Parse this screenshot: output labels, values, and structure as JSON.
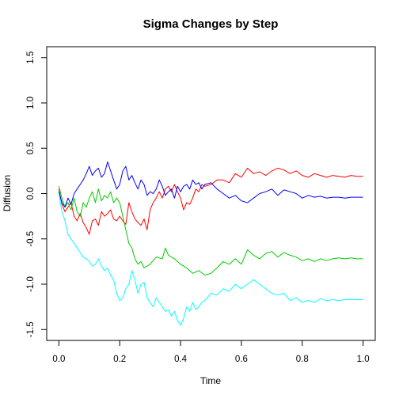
{
  "chart_data": {
    "type": "line",
    "title": "Sigma Changes by Step",
    "xlabel": "Time",
    "ylabel": "Diffusion",
    "xlim": [
      -0.04,
      1.04
    ],
    "ylim": [
      -1.62,
      1.62
    ],
    "x_ticks": [
      0.0,
      0.2,
      0.4,
      0.6,
      0.8,
      1.0
    ],
    "x_tick_labels": [
      "0.0",
      "0.2",
      "0.4",
      "0.6",
      "0.8",
      "1.0"
    ],
    "y_ticks": [
      -1.5,
      -1.0,
      -0.5,
      0.0,
      0.5,
      1.0,
      1.5
    ],
    "y_tick_labels": [
      "-1.5",
      "-1.0",
      "-0.5",
      "0.0",
      "0.5",
      "1.0",
      "1.5"
    ],
    "grid": false,
    "legend": "none",
    "series": [
      {
        "color": "#ff0000",
        "x": [
          0.0,
          0.01,
          0.02,
          0.03,
          0.04,
          0.05,
          0.06,
          0.07,
          0.08,
          0.09,
          0.1,
          0.11,
          0.12,
          0.13,
          0.14,
          0.15,
          0.16,
          0.17,
          0.18,
          0.19,
          0.2,
          0.21,
          0.22,
          0.23,
          0.24,
          0.25,
          0.26,
          0.27,
          0.28,
          0.29,
          0.3,
          0.31,
          0.32,
          0.33,
          0.34,
          0.35,
          0.36,
          0.37,
          0.38,
          0.39,
          0.4,
          0.41,
          0.42,
          0.43,
          0.44,
          0.45,
          0.46,
          0.47,
          0.48,
          0.5,
          0.52,
          0.54,
          0.56,
          0.58,
          0.6,
          0.62,
          0.64,
          0.66,
          0.68,
          0.7,
          0.72,
          0.74,
          0.76,
          0.78,
          0.8,
          0.82,
          0.84,
          0.86,
          0.88,
          0.9,
          0.92,
          0.94,
          0.96,
          0.98,
          1.0
        ],
        "y": [
          0.05,
          -0.12,
          -0.2,
          -0.15,
          -0.1,
          -0.25,
          -0.3,
          -0.22,
          -0.32,
          -0.38,
          -0.45,
          -0.3,
          -0.28,
          -0.35,
          -0.2,
          -0.25,
          -0.22,
          -0.18,
          -0.28,
          -0.3,
          -0.25,
          -0.3,
          -0.34,
          -0.1,
          -0.2,
          -0.28,
          -0.32,
          -0.35,
          -0.28,
          -0.4,
          -0.18,
          -0.1,
          -0.05,
          0.02,
          -0.05,
          0.05,
          0.08,
          0.02,
          0.1,
          0.02,
          -0.05,
          -0.18,
          -0.1,
          -0.12,
          -0.05,
          0.05,
          0.02,
          0.1,
          0.08,
          0.1,
          0.15,
          0.15,
          0.12,
          0.22,
          0.18,
          0.28,
          0.22,
          0.24,
          0.2,
          0.25,
          0.28,
          0.26,
          0.22,
          0.25,
          0.2,
          0.18,
          0.22,
          0.2,
          0.18,
          0.2,
          0.19,
          0.18,
          0.2,
          0.19,
          0.19
        ]
      },
      {
        "color": "#00cd00",
        "x": [
          0.0,
          0.01,
          0.02,
          0.03,
          0.04,
          0.05,
          0.06,
          0.07,
          0.08,
          0.09,
          0.1,
          0.11,
          0.12,
          0.13,
          0.14,
          0.15,
          0.16,
          0.17,
          0.18,
          0.19,
          0.2,
          0.21,
          0.22,
          0.23,
          0.24,
          0.25,
          0.26,
          0.27,
          0.28,
          0.29,
          0.3,
          0.32,
          0.34,
          0.35,
          0.36,
          0.38,
          0.4,
          0.42,
          0.44,
          0.46,
          0.48,
          0.5,
          0.52,
          0.54,
          0.56,
          0.58,
          0.6,
          0.62,
          0.64,
          0.66,
          0.68,
          0.7,
          0.72,
          0.74,
          0.76,
          0.78,
          0.8,
          0.82,
          0.84,
          0.86,
          0.88,
          0.9,
          0.92,
          0.94,
          0.96,
          0.98,
          1.0
        ],
        "y": [
          0.08,
          -0.05,
          -0.15,
          -0.1,
          -0.18,
          -0.05,
          -0.2,
          -0.25,
          -0.1,
          -0.15,
          -0.05,
          0.02,
          -0.1,
          0.05,
          -0.08,
          -0.02,
          -0.05,
          0.02,
          -0.1,
          -0.05,
          -0.1,
          -0.25,
          -0.4,
          -0.55,
          -0.6,
          -0.72,
          -0.78,
          -0.75,
          -0.82,
          -0.8,
          -0.78,
          -0.7,
          -0.72,
          -0.6,
          -0.68,
          -0.72,
          -0.78,
          -0.82,
          -0.88,
          -0.85,
          -0.9,
          -0.88,
          -0.82,
          -0.75,
          -0.78,
          -0.72,
          -0.78,
          -0.62,
          -0.68,
          -0.72,
          -0.66,
          -0.64,
          -0.7,
          -0.65,
          -0.68,
          -0.7,
          -0.74,
          -0.72,
          -0.75,
          -0.72,
          -0.74,
          -0.72,
          -0.71,
          -0.72,
          -0.71,
          -0.72,
          -0.72
        ]
      },
      {
        "color": "#0000ff",
        "x": [
          0.0,
          0.01,
          0.02,
          0.03,
          0.04,
          0.05,
          0.06,
          0.07,
          0.08,
          0.09,
          0.1,
          0.11,
          0.12,
          0.13,
          0.14,
          0.15,
          0.16,
          0.17,
          0.18,
          0.19,
          0.2,
          0.21,
          0.22,
          0.23,
          0.24,
          0.25,
          0.26,
          0.27,
          0.28,
          0.29,
          0.3,
          0.31,
          0.32,
          0.33,
          0.34,
          0.35,
          0.36,
          0.37,
          0.38,
          0.39,
          0.4,
          0.41,
          0.42,
          0.43,
          0.44,
          0.45,
          0.46,
          0.47,
          0.48,
          0.5,
          0.52,
          0.54,
          0.56,
          0.58,
          0.6,
          0.62,
          0.64,
          0.66,
          0.68,
          0.7,
          0.72,
          0.74,
          0.76,
          0.78,
          0.8,
          0.82,
          0.84,
          0.86,
          0.88,
          0.9,
          0.92,
          0.94,
          0.96,
          0.98,
          1.0
        ],
        "y": [
          0.02,
          -0.1,
          -0.15,
          -0.05,
          -0.12,
          0.0,
          0.05,
          0.1,
          0.15,
          0.22,
          0.3,
          0.2,
          0.25,
          0.28,
          0.18,
          0.22,
          0.35,
          0.25,
          0.15,
          0.05,
          0.1,
          0.25,
          0.3,
          0.15,
          0.2,
          0.12,
          0.05,
          0.15,
          0.1,
          -0.02,
          0.02,
          0.0,
          0.05,
          0.15,
          0.08,
          -0.02,
          0.02,
          0.05,
          -0.05,
          0.08,
          0.02,
          0.08,
          0.1,
          0.05,
          0.15,
          0.1,
          0.12,
          0.05,
          0.1,
          0.12,
          0.05,
          0.0,
          -0.05,
          -0.02,
          -0.08,
          -0.1,
          -0.05,
          0.0,
          0.02,
          0.05,
          -0.02,
          0.04,
          0.02,
          0.0,
          -0.05,
          -0.02,
          -0.04,
          -0.03,
          -0.05,
          -0.04,
          -0.04,
          -0.05,
          -0.04,
          -0.04,
          -0.04
        ]
      },
      {
        "color": "#00ffff",
        "x": [
          0.0,
          0.01,
          0.02,
          0.03,
          0.04,
          0.05,
          0.06,
          0.07,
          0.08,
          0.09,
          0.1,
          0.11,
          0.12,
          0.13,
          0.14,
          0.15,
          0.16,
          0.17,
          0.18,
          0.19,
          0.2,
          0.21,
          0.22,
          0.23,
          0.24,
          0.25,
          0.26,
          0.27,
          0.28,
          0.29,
          0.3,
          0.31,
          0.32,
          0.33,
          0.34,
          0.35,
          0.36,
          0.37,
          0.38,
          0.39,
          0.4,
          0.41,
          0.42,
          0.43,
          0.44,
          0.45,
          0.46,
          0.47,
          0.48,
          0.5,
          0.52,
          0.54,
          0.56,
          0.58,
          0.6,
          0.62,
          0.64,
          0.66,
          0.68,
          0.7,
          0.72,
          0.74,
          0.76,
          0.78,
          0.8,
          0.82,
          0.84,
          0.86,
          0.88,
          0.9,
          0.92,
          0.94,
          0.96,
          0.98,
          1.0
        ],
        "y": [
          0.0,
          -0.2,
          -0.3,
          -0.45,
          -0.5,
          -0.55,
          -0.6,
          -0.65,
          -0.7,
          -0.72,
          -0.75,
          -0.8,
          -0.78,
          -0.72,
          -0.8,
          -0.85,
          -0.82,
          -0.9,
          -0.95,
          -1.1,
          -1.18,
          -1.15,
          -1.05,
          -1.0,
          -0.85,
          -0.95,
          -1.1,
          -1.0,
          -0.98,
          -1.15,
          -1.2,
          -1.25,
          -1.15,
          -1.2,
          -1.25,
          -1.3,
          -1.28,
          -1.35,
          -1.3,
          -1.4,
          -1.45,
          -1.38,
          -1.25,
          -1.3,
          -1.2,
          -1.28,
          -1.25,
          -1.2,
          -1.18,
          -1.1,
          -1.12,
          -1.05,
          -1.08,
          -1.0,
          -1.05,
          -1.0,
          -0.95,
          -1.0,
          -1.05,
          -1.1,
          -1.12,
          -1.1,
          -1.18,
          -1.15,
          -1.2,
          -1.18,
          -1.2,
          -1.16,
          -1.18,
          -1.17,
          -1.18,
          -1.17,
          -1.17,
          -1.17,
          -1.17
        ]
      }
    ]
  }
}
